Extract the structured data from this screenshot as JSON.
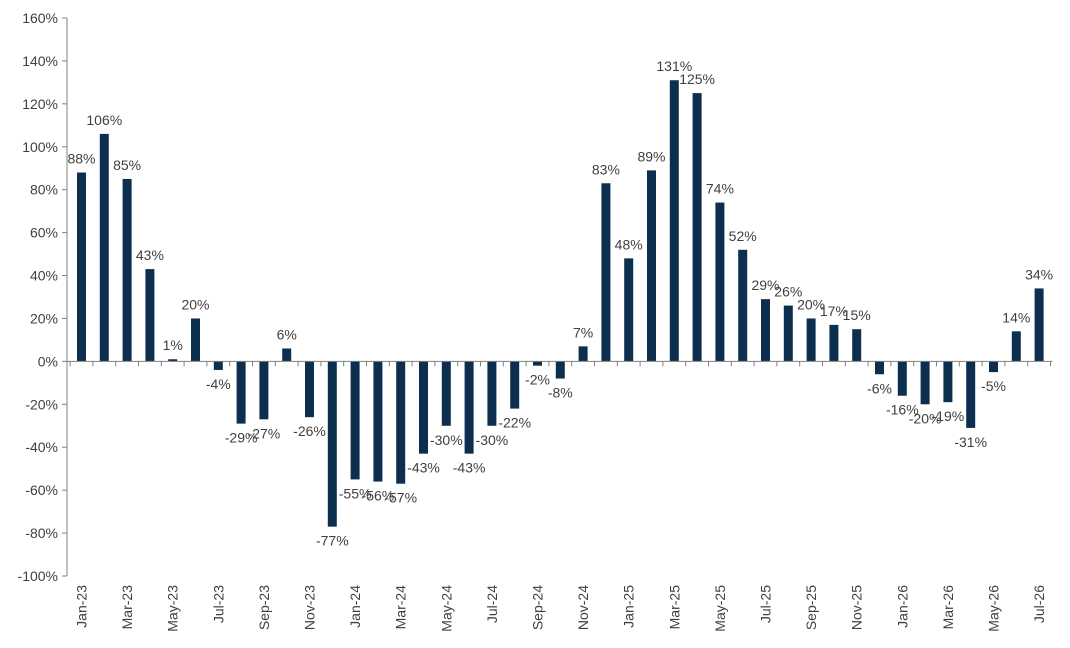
{
  "chart_data": {
    "type": "bar",
    "title": "",
    "xlabel": "",
    "ylabel": "",
    "ylim": [
      -100,
      160
    ],
    "y_ticks": [
      -100,
      -80,
      -60,
      -40,
      -20,
      0,
      20,
      40,
      60,
      80,
      100,
      120,
      140,
      160
    ],
    "y_tick_labels": [
      "-100%",
      "-80%",
      "-60%",
      "-40%",
      "-20%",
      "0%",
      "20%",
      "40%",
      "60%",
      "80%",
      "100%",
      "120%",
      "140%",
      "160%"
    ],
    "grid": false,
    "bar_color": "#0d2f4f",
    "categories": [
      "Jan-23",
      "Feb-23",
      "Mar-23",
      "Apr-23",
      "May-23",
      "Jun-23",
      "Jul-23",
      "Aug-23",
      "Sep-23",
      "Oct-23",
      "Nov-23",
      "Dec-23",
      "Jan-24",
      "Feb-24",
      "Mar-24",
      "Apr-24",
      "May-24",
      "Jun-24",
      "Jul-24",
      "Aug-24",
      "Sep-24",
      "Oct-24",
      "Nov-24",
      "Dec-24",
      "Jan-25",
      "Feb-25",
      "Mar-25",
      "Apr-25",
      "May-25",
      "Jun-25",
      "Jul-25",
      "Aug-25",
      "Sep-25",
      "Oct-25",
      "Nov-25",
      "Dec-25",
      "Jan-26",
      "Feb-26",
      "Mar-26",
      "Apr-26",
      "May-26",
      "Jun-26",
      "Jul-26"
    ],
    "x_tick_labels": [
      "Jan-23",
      "",
      "Mar-23",
      "",
      "May-23",
      "",
      "Jul-23",
      "",
      "Sep-23",
      "",
      "Nov-23",
      "",
      "Jan-24",
      "",
      "Mar-24",
      "",
      "May-24",
      "",
      "Jul-24",
      "",
      "Sep-24",
      "",
      "Nov-24",
      "",
      "Jan-25",
      "",
      "Mar-25",
      "",
      "May-25",
      "",
      "Jul-25",
      "",
      "Sep-25",
      "",
      "Nov-25",
      "",
      "Jan-26",
      "",
      "Mar-26",
      "",
      "May-26",
      "",
      "Jul-26"
    ],
    "values": [
      88,
      106,
      85,
      43,
      1,
      20,
      -4,
      -29,
      -27,
      6,
      -26,
      -77,
      -55,
      -56,
      -57,
      -43,
      -30,
      -43,
      -30,
      -22,
      -2,
      -8,
      7,
      83,
      48,
      89,
      131,
      125,
      74,
      52,
      29,
      26,
      20,
      17,
      15,
      -6,
      -16,
      -20,
      -19,
      -31,
      -5,
      14,
      34
    ],
    "data_labels": [
      "88%",
      "106%",
      "85%",
      "43%",
      "1%",
      "20%",
      "-4%",
      "-29%",
      "-27%",
      "6%",
      "-26%",
      "-77%",
      "-55%",
      "-56%",
      "-57%",
      "-43%",
      "-30%",
      "-43%",
      "-30%",
      "-22%",
      "-2%",
      "-8%",
      "7%",
      "83%",
      "48%",
      "89%",
      "131%",
      "125%",
      "74%",
      "52%",
      "29%",
      "26%",
      "20%",
      "17%",
      "15%",
      "-6%",
      "-16%",
      "-20%",
      "-19%",
      "-31%",
      "-5%",
      "14%",
      "34%"
    ]
  }
}
